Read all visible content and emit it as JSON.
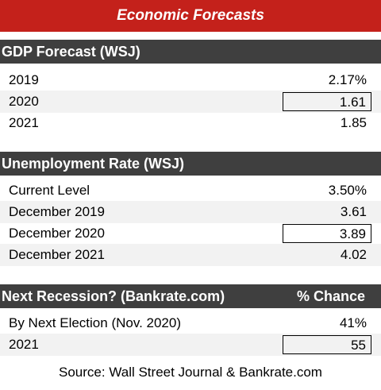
{
  "title": "Economic Forecasts",
  "gdp": {
    "header": "GDP Forecast (WSJ)",
    "rows": [
      {
        "label": "2019",
        "value": "2.17%"
      },
      {
        "label": "2020",
        "value": "1.61"
      },
      {
        "label": "2021",
        "value": "1.85"
      }
    ]
  },
  "unemployment": {
    "header": "Unemployment Rate (WSJ)",
    "rows": [
      {
        "label": "Current Level",
        "value": "3.50%"
      },
      {
        "label": "December 2019",
        "value": "3.61"
      },
      {
        "label": "December 2020",
        "value": "3.89"
      },
      {
        "label": "December 2021",
        "value": "4.02"
      }
    ]
  },
  "recession": {
    "header": "Next Recession? (Bankrate.com)",
    "header_right": "% Chance",
    "rows": [
      {
        "label": "By Next Election (Nov. 2020)",
        "value": "41%"
      },
      {
        "label": "2021",
        "value": "55"
      }
    ]
  },
  "source": "Source: Wall Street Journal & Bankrate.com"
}
